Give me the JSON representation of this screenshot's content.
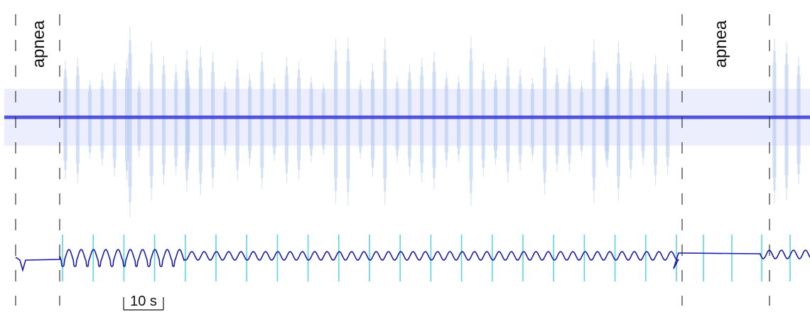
{
  "annotations": [
    "apnea",
    "apnea"
  ],
  "scale_bar": "10 s"
}
